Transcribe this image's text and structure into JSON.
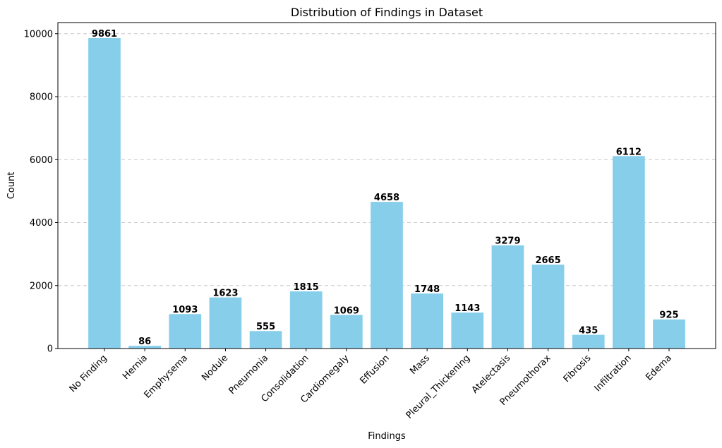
{
  "chart_data": {
    "type": "bar",
    "title": "Distribution of Findings in Dataset",
    "xlabel": "Findings",
    "ylabel": "Count",
    "categories": [
      "No Finding",
      "Hernia",
      "Emphysema",
      "Nodule",
      "Pneumonia",
      "Consolidation",
      "Cardiomegaly",
      "Effusion",
      "Mass",
      "Pleural_Thickening",
      "Atelectasis",
      "Pneumothorax",
      "Fibrosis",
      "Infiltration",
      "Edema"
    ],
    "values": [
      9861,
      86,
      1093,
      1623,
      555,
      1815,
      1069,
      4658,
      1748,
      1143,
      3279,
      2665,
      435,
      6112,
      925
    ],
    "ylim": [
      0,
      10353
    ],
    "yticks": [
      0,
      2000,
      4000,
      6000,
      8000,
      10000
    ],
    "grid": "y-dashed",
    "bar_color": "#87ceeb"
  }
}
